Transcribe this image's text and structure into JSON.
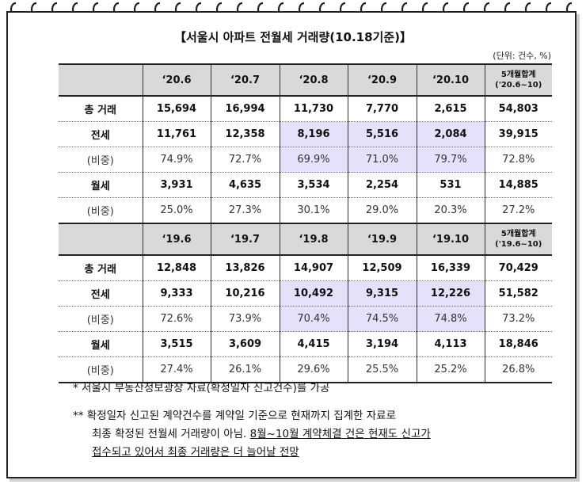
{
  "title": "【서울시 아파트 전월세 거래량(10.18기준)】",
  "unit": "(단위: 건수, %)",
  "table2020": {
    "headers": [
      "",
      "‘20.6",
      "‘20.7",
      "‘20.8",
      "‘20.9",
      "‘20.10",
      "5개월합계('20.6~10)"
    ],
    "rows": [
      {
        "label": "총 거래",
        "values": [
          "15,694",
          "16,994",
          "11,730",
          "7,770",
          "2,615",
          "54,803"
        ]
      },
      {
        "label": "전세",
        "values": [
          "11,761",
          "12,358",
          "8,196",
          "5,516",
          "2,084",
          "39,915"
        ]
      },
      {
        "label": "(비중)",
        "values": [
          "74.9%",
          "72.7%",
          "69.9%",
          "71.0%",
          "79.7%",
          "72.8%"
        ]
      },
      {
        "label": "월세",
        "values": [
          "3,931",
          "4,635",
          "3,534",
          "2,254",
          "531",
          "14,885"
        ]
      },
      {
        "label": "(비중)",
        "values": [
          "25.0%",
          "27.3%",
          "30.1%",
          "29.0%",
          "20.3%",
          "27.2%"
        ]
      }
    ]
  },
  "table2019": {
    "headers": [
      "",
      "‘19.6",
      "‘19.7",
      "‘19.8",
      "‘19.9",
      "‘19.10",
      "5개월합계('19.6~10)"
    ],
    "rows": [
      {
        "label": "총 거래",
        "values": [
          "12,848",
          "13,826",
          "14,907",
          "12,509",
          "16,339",
          "70,429"
        ]
      },
      {
        "label": "전세",
        "values": [
          "9,333",
          "10,216",
          "10,492",
          "9,315",
          "12,226",
          "51,582"
        ]
      },
      {
        "label": "(비중)",
        "values": [
          "72.6%",
          "73.9%",
          "70.4%",
          "74.5%",
          "74.8%",
          "73.2%"
        ]
      },
      {
        "label": "월세",
        "values": [
          "3,515",
          "3,609",
          "4,415",
          "3,194",
          "4,113",
          "18,846"
        ]
      },
      {
        "label": "(비중)",
        "values": [
          "27.4%",
          "26.1%",
          "29.6%",
          "25.5%",
          "25.2%",
          "26.8%"
        ]
      }
    ]
  },
  "notes": {
    "note1": "* 서울시 부동산정보광장 자료(확정일자 신고건수)를 가공",
    "note2_a": "** 확정일자 신고된 계약건수를 계약일 기준으로 현재까지 집계한 자료로",
    "note2_b": "최종 확정된 전월세 거래량이 아님.",
    "note2_c": "8월~10월 계약체결 건은 현재도 신고가",
    "note2_d": "접수되고 있어서 최종 거래량은 더 늘어날 전망"
  }
}
